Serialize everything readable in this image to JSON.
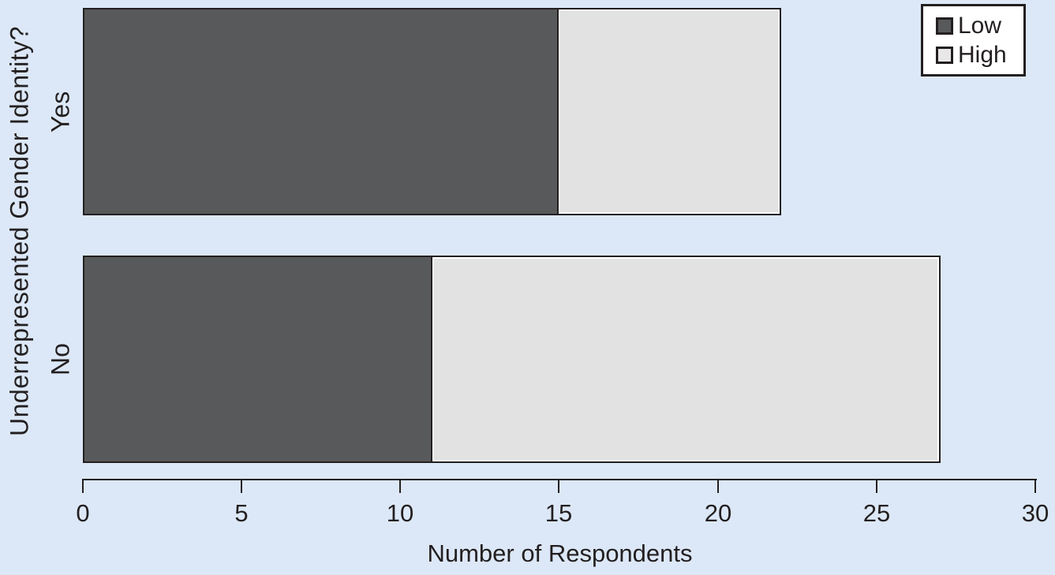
{
  "chart_data": {
    "type": "bar",
    "orientation": "horizontal",
    "stacked": true,
    "title": "",
    "xlabel": "Number of Respondents",
    "ylabel": "Underrepresented Gender Identity?",
    "categories": [
      "Yes",
      "No"
    ],
    "series": [
      {
        "name": "Low",
        "values": [
          15,
          11
        ],
        "color": "#58595b"
      },
      {
        "name": "High",
        "values": [
          7,
          16
        ],
        "color": "#e2e2e2"
      }
    ],
    "totals": [
      22,
      27
    ],
    "xlim": [
      0,
      30
    ],
    "xticks": [
      0,
      5,
      10,
      15,
      20,
      25,
      30
    ],
    "xtick_labels": [
      "0",
      "5",
      "10",
      "15",
      "20",
      "25",
      "30"
    ],
    "grid": false,
    "legend": {
      "position": "top-right",
      "entries": [
        "Low",
        "High"
      ]
    }
  },
  "colors": {
    "background": "#dce8f7",
    "series_low": "#58595b",
    "series_high": "#e2e2e2",
    "outline": "#231f20",
    "legend_background": "#ffffff",
    "light_segment_inner_highlight": "#ffffff"
  }
}
